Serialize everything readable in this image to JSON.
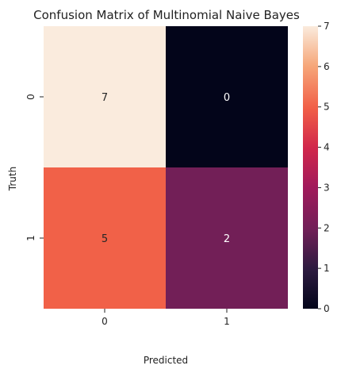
{
  "chart_data": {
    "type": "heatmap",
    "title": "Confusion Matrix of Multinomial Naive Bayes",
    "xlabel": "Predicted",
    "ylabel": "Truth",
    "x_categories": [
      "0",
      "1"
    ],
    "y_categories": [
      "0",
      "1"
    ],
    "values": [
      [
        7,
        0
      ],
      [
        5,
        2
      ]
    ],
    "colorbar": {
      "range": [
        0,
        7
      ],
      "ticks": [
        "0",
        "1",
        "2",
        "3",
        "4",
        "5",
        "6",
        "7"
      ],
      "colormap": "rocket"
    },
    "grid": false,
    "legend": "colorbar-right"
  }
}
